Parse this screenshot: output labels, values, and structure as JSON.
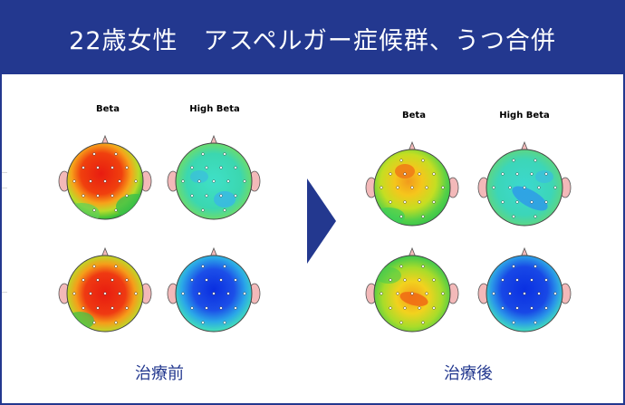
{
  "header": {
    "title": "22歳女性　アスペルガー症候群、うつ合併"
  },
  "colors": {
    "header_bg": "#23388f",
    "caption_text": "#23388f",
    "arrow": "#23388f"
  },
  "panels": [
    {
      "id": "before",
      "caption": "治療前",
      "columns": [
        "Beta",
        "High Beta"
      ]
    },
    {
      "id": "after",
      "caption": "治療後",
      "columns": [
        "Beta",
        "High Beta"
      ]
    }
  ],
  "arrow_icon": "chevron-right-icon"
}
